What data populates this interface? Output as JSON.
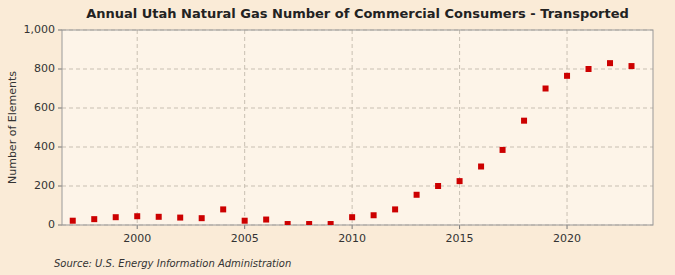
{
  "chart_data": {
    "type": "scatter",
    "title": "Annual Utah Natural Gas Number of Commercial Consumers - Transported",
    "ylabel": "Number of Elements",
    "annotation": "Source: U.S. Energy Information Administration",
    "x": [
      1997,
      1998,
      1999,
      2000,
      2001,
      2002,
      2003,
      2004,
      2005,
      2006,
      2007,
      2008,
      2009,
      2010,
      2011,
      2012,
      2013,
      2014,
      2015,
      2016,
      2017,
      2018,
      2019,
      2020,
      2021,
      2022,
      2023
    ],
    "values": [
      22,
      30,
      40,
      45,
      42,
      38,
      35,
      80,
      22,
      28,
      5,
      5,
      5,
      40,
      50,
      80,
      155,
      200,
      225,
      300,
      385,
      535,
      700,
      765,
      800,
      830,
      815
    ],
    "color": "#cc0000",
    "marker": "square",
    "xlim": [
      1996.5,
      2024
    ],
    "xticks": [
      2000,
      2005,
      2010,
      2015,
      2020
    ],
    "ylim": [
      0,
      1000
    ],
    "yticks": [
      0,
      200,
      400,
      600,
      800,
      {
        "value": 1000,
        "label": "1,000"
      }
    ],
    "grid": true
  }
}
